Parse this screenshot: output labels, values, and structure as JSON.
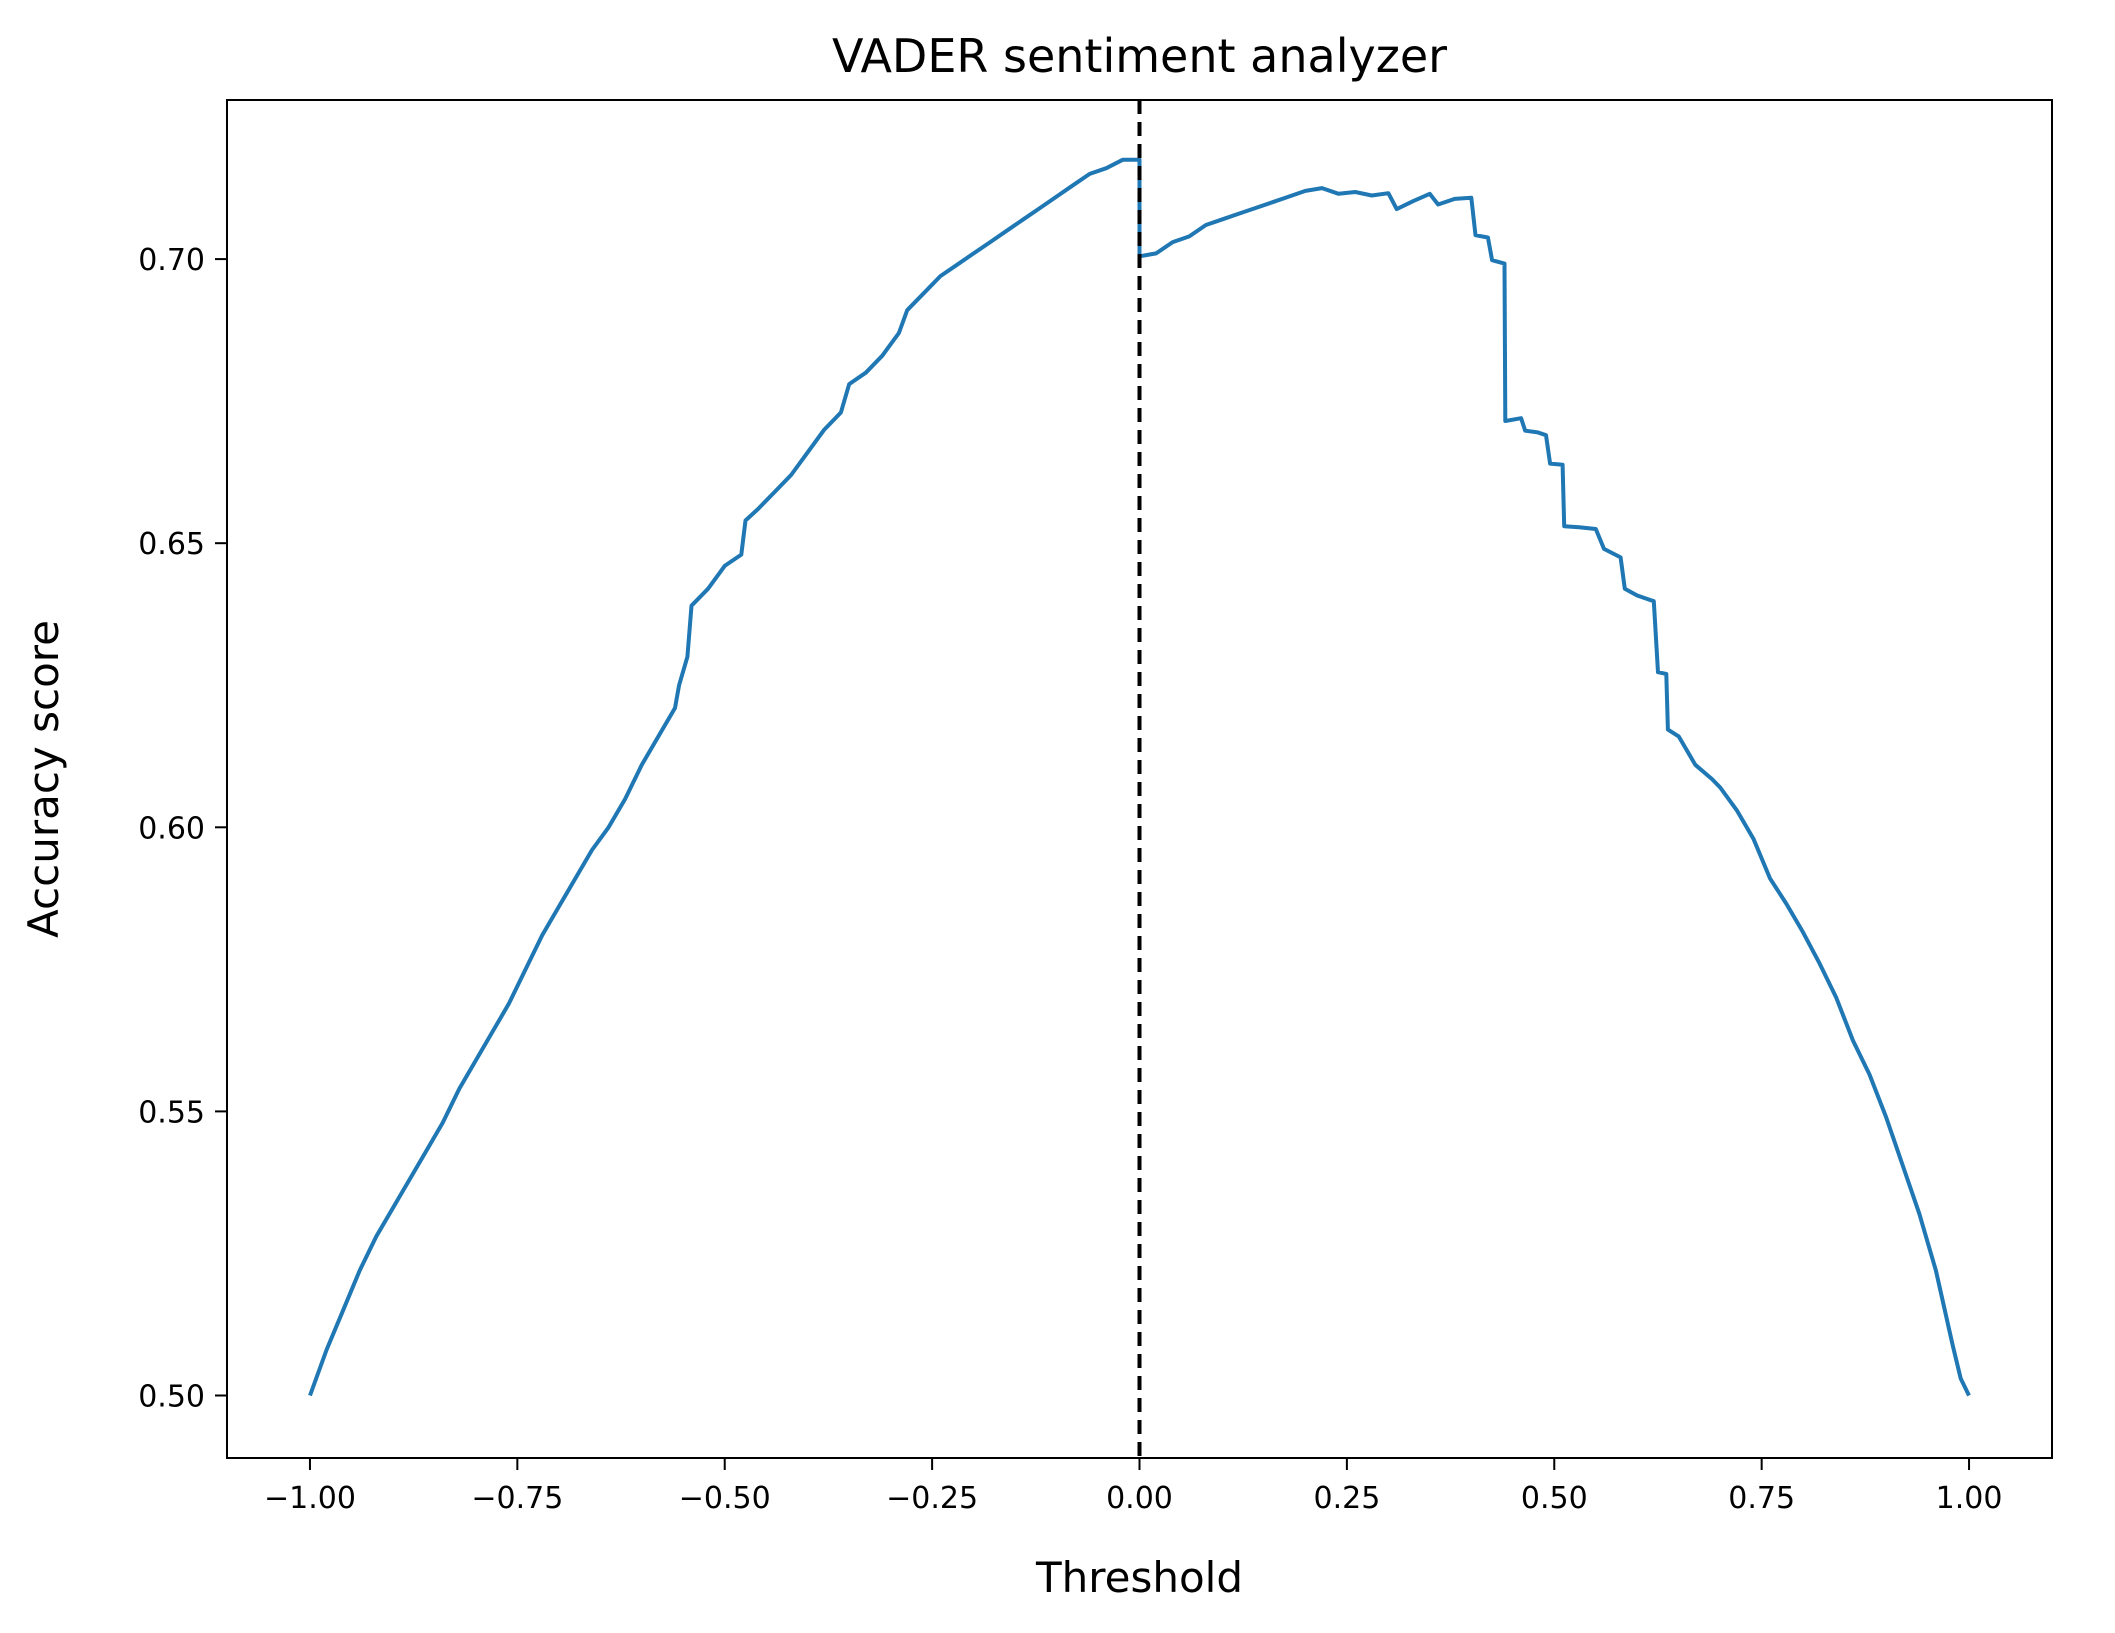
{
  "chart_data": {
    "type": "line",
    "title": "VADER sentiment analyzer",
    "xlabel": "Threshold",
    "ylabel": "Accuracy score",
    "xlim": [
      -1.1,
      1.1
    ],
    "ylim": [
      0.489,
      0.728
    ],
    "xticks": [
      -1.0,
      -0.75,
      -0.5,
      -0.25,
      0.0,
      0.25,
      0.5,
      0.75,
      1.0
    ],
    "xtick_labels": [
      "−1.00",
      "−0.75",
      "−0.50",
      "−0.25",
      "0.00",
      "0.25",
      "0.50",
      "0.75",
      "1.00"
    ],
    "yticks": [
      0.5,
      0.55,
      0.6,
      0.65,
      0.7
    ],
    "ytick_labels": [
      "0.50",
      "0.55",
      "0.60",
      "0.65",
      "0.70"
    ],
    "grid": false,
    "colors": {
      "series": "#1f77b4",
      "threshold_line": "#000000",
      "axes": "#000000"
    },
    "vline": {
      "x": 0.0,
      "style": "dashed"
    },
    "series": [
      {
        "points": [
          [
            -1.0,
            0.5
          ],
          [
            -0.98,
            0.508
          ],
          [
            -0.96,
            0.515
          ],
          [
            -0.94,
            0.522
          ],
          [
            -0.92,
            0.528
          ],
          [
            -0.9,
            0.533
          ],
          [
            -0.88,
            0.538
          ],
          [
            -0.86,
            0.543
          ],
          [
            -0.84,
            0.548
          ],
          [
            -0.82,
            0.554
          ],
          [
            -0.8,
            0.559
          ],
          [
            -0.78,
            0.564
          ],
          [
            -0.76,
            0.569
          ],
          [
            -0.74,
            0.575
          ],
          [
            -0.72,
            0.581
          ],
          [
            -0.7,
            0.586
          ],
          [
            -0.68,
            0.591
          ],
          [
            -0.66,
            0.596
          ],
          [
            -0.64,
            0.6
          ],
          [
            -0.62,
            0.605
          ],
          [
            -0.6,
            0.611
          ],
          [
            -0.58,
            0.616
          ],
          [
            -0.56,
            0.621
          ],
          [
            -0.555,
            0.625
          ],
          [
            -0.545,
            0.63
          ],
          [
            -0.54,
            0.639
          ],
          [
            -0.52,
            0.642
          ],
          [
            -0.5,
            0.646
          ],
          [
            -0.48,
            0.648
          ],
          [
            -0.475,
            0.654
          ],
          [
            -0.46,
            0.656
          ],
          [
            -0.44,
            0.659
          ],
          [
            -0.42,
            0.662
          ],
          [
            -0.4,
            0.666
          ],
          [
            -0.38,
            0.67
          ],
          [
            -0.36,
            0.673
          ],
          [
            -0.35,
            0.678
          ],
          [
            -0.33,
            0.68
          ],
          [
            -0.31,
            0.683
          ],
          [
            -0.29,
            0.687
          ],
          [
            -0.28,
            0.691
          ],
          [
            -0.26,
            0.694
          ],
          [
            -0.24,
            0.697
          ],
          [
            -0.22,
            0.699
          ],
          [
            -0.2,
            0.701
          ],
          [
            -0.18,
            0.703
          ],
          [
            -0.16,
            0.705
          ],
          [
            -0.14,
            0.707
          ],
          [
            -0.12,
            0.709
          ],
          [
            -0.1,
            0.711
          ],
          [
            -0.08,
            0.713
          ],
          [
            -0.06,
            0.715
          ],
          [
            -0.04,
            0.716
          ],
          [
            -0.02,
            0.7175
          ],
          [
            0.0,
            0.7175
          ],
          [
            0.0,
            0.7005
          ],
          [
            0.02,
            0.701
          ],
          [
            0.04,
            0.703
          ],
          [
            0.06,
            0.704
          ],
          [
            0.08,
            0.706
          ],
          [
            0.1,
            0.707
          ],
          [
            0.12,
            0.708
          ],
          [
            0.14,
            0.709
          ],
          [
            0.16,
            0.71
          ],
          [
            0.18,
            0.711
          ],
          [
            0.2,
            0.712
          ],
          [
            0.22,
            0.7125
          ],
          [
            0.24,
            0.7115
          ],
          [
            0.26,
            0.7118
          ],
          [
            0.28,
            0.7112
          ],
          [
            0.3,
            0.7116
          ],
          [
            0.31,
            0.7088
          ],
          [
            0.33,
            0.7102
          ],
          [
            0.35,
            0.7115
          ],
          [
            0.36,
            0.7096
          ],
          [
            0.38,
            0.7106
          ],
          [
            0.4,
            0.7108
          ],
          [
            0.405,
            0.7042
          ],
          [
            0.42,
            0.7038
          ],
          [
            0.425,
            0.6998
          ],
          [
            0.44,
            0.6992
          ],
          [
            0.441,
            0.6715
          ],
          [
            0.46,
            0.672
          ],
          [
            0.465,
            0.6698
          ],
          [
            0.48,
            0.6695
          ],
          [
            0.49,
            0.669
          ],
          [
            0.495,
            0.664
          ],
          [
            0.51,
            0.6638
          ],
          [
            0.512,
            0.653
          ],
          [
            0.53,
            0.6528
          ],
          [
            0.55,
            0.6525
          ],
          [
            0.56,
            0.649
          ],
          [
            0.58,
            0.6475
          ],
          [
            0.585,
            0.642
          ],
          [
            0.6,
            0.6408
          ],
          [
            0.62,
            0.6398
          ],
          [
            0.625,
            0.6273
          ],
          [
            0.635,
            0.627
          ],
          [
            0.637,
            0.6172
          ],
          [
            0.65,
            0.616
          ],
          [
            0.67,
            0.611
          ],
          [
            0.69,
            0.6085
          ],
          [
            0.7,
            0.607
          ],
          [
            0.72,
            0.603
          ],
          [
            0.74,
            0.598
          ],
          [
            0.76,
            0.591
          ],
          [
            0.78,
            0.5865
          ],
          [
            0.8,
            0.5815
          ],
          [
            0.82,
            0.576
          ],
          [
            0.84,
            0.57
          ],
          [
            0.86,
            0.5625
          ],
          [
            0.88,
            0.5565
          ],
          [
            0.9,
            0.549
          ],
          [
            0.92,
            0.5405
          ],
          [
            0.94,
            0.532
          ],
          [
            0.96,
            0.522
          ],
          [
            0.98,
            0.509
          ],
          [
            0.99,
            0.503
          ],
          [
            1.0,
            0.5
          ]
        ]
      }
    ]
  }
}
